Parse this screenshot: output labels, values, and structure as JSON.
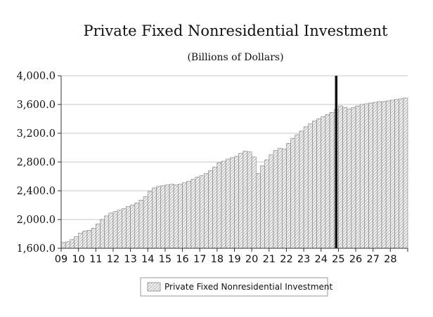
{
  "chart_data": {
    "type": "bar",
    "title": "Private Fixed Nonresidential Investment",
    "subtitle": "(Billions of Dollars)",
    "xlabel": "",
    "ylabel": "",
    "ylim": [
      1600,
      4000
    ],
    "yticks": [
      "1,600.0",
      "2,000.0",
      "2,400.0",
      "2,800.0",
      "3,200.0",
      "3,600.0",
      "4,000.0"
    ],
    "ytick_values": [
      1600,
      2000,
      2400,
      2800,
      3200,
      3600,
      4000
    ],
    "xticks": [
      "09",
      "10",
      "11",
      "12",
      "13",
      "14",
      "15",
      "16",
      "17",
      "18",
      "19",
      "20",
      "21",
      "22",
      "23",
      "24",
      "25",
      "26",
      "27",
      "28"
    ],
    "grid": "horizontal",
    "legend_position": "bottom",
    "forecast_divider_quarter": "2024Q4",
    "series": [
      {
        "name": "Private Fixed Nonresidential Investment",
        "x": [
          "2009Q1",
          "2009Q2",
          "2009Q3",
          "2009Q4",
          "2010Q1",
          "2010Q2",
          "2010Q3",
          "2010Q4",
          "2011Q1",
          "2011Q2",
          "2011Q3",
          "2011Q4",
          "2012Q1",
          "2012Q2",
          "2012Q3",
          "2012Q4",
          "2013Q1",
          "2013Q2",
          "2013Q3",
          "2013Q4",
          "2014Q1",
          "2014Q2",
          "2014Q3",
          "2014Q4",
          "2015Q1",
          "2015Q2",
          "2015Q3",
          "2015Q4",
          "2016Q1",
          "2016Q2",
          "2016Q3",
          "2016Q4",
          "2017Q1",
          "2017Q2",
          "2017Q3",
          "2017Q4",
          "2018Q1",
          "2018Q2",
          "2018Q3",
          "2018Q4",
          "2019Q1",
          "2019Q2",
          "2019Q3",
          "2019Q4",
          "2020Q1",
          "2020Q2",
          "2020Q3",
          "2020Q4",
          "2021Q1",
          "2021Q2",
          "2021Q3",
          "2021Q4",
          "2022Q1",
          "2022Q2",
          "2022Q3",
          "2022Q4",
          "2023Q1",
          "2023Q2",
          "2023Q3",
          "2023Q4",
          "2024Q1",
          "2024Q2",
          "2024Q3",
          "2024Q4",
          "2025Q1",
          "2025Q2",
          "2025Q3",
          "2025Q4",
          "2026Q1",
          "2026Q2",
          "2026Q3",
          "2026Q4",
          "2027Q1",
          "2027Q2",
          "2027Q3",
          "2027Q4",
          "2028Q1",
          "2028Q2",
          "2028Q3",
          "2028Q4"
        ],
        "values": [
          1680,
          1690,
          1720,
          1760,
          1810,
          1840,
          1850,
          1880,
          1940,
          2000,
          2050,
          2090,
          2110,
          2130,
          2150,
          2180,
          2200,
          2230,
          2270,
          2320,
          2390,
          2440,
          2460,
          2470,
          2480,
          2490,
          2480,
          2490,
          2510,
          2530,
          2560,
          2590,
          2610,
          2640,
          2680,
          2730,
          2790,
          2810,
          2840,
          2860,
          2880,
          2920,
          2950,
          2940,
          2870,
          2640,
          2750,
          2830,
          2900,
          2960,
          2990,
          2980,
          3060,
          3130,
          3180,
          3230,
          3290,
          3330,
          3370,
          3400,
          3430,
          3460,
          3490,
          3530,
          3580,
          3560,
          3540,
          3560,
          3580,
          3600,
          3610,
          3620,
          3630,
          3640,
          3640,
          3650,
          3660,
          3670,
          3680,
          3690
        ]
      }
    ]
  }
}
